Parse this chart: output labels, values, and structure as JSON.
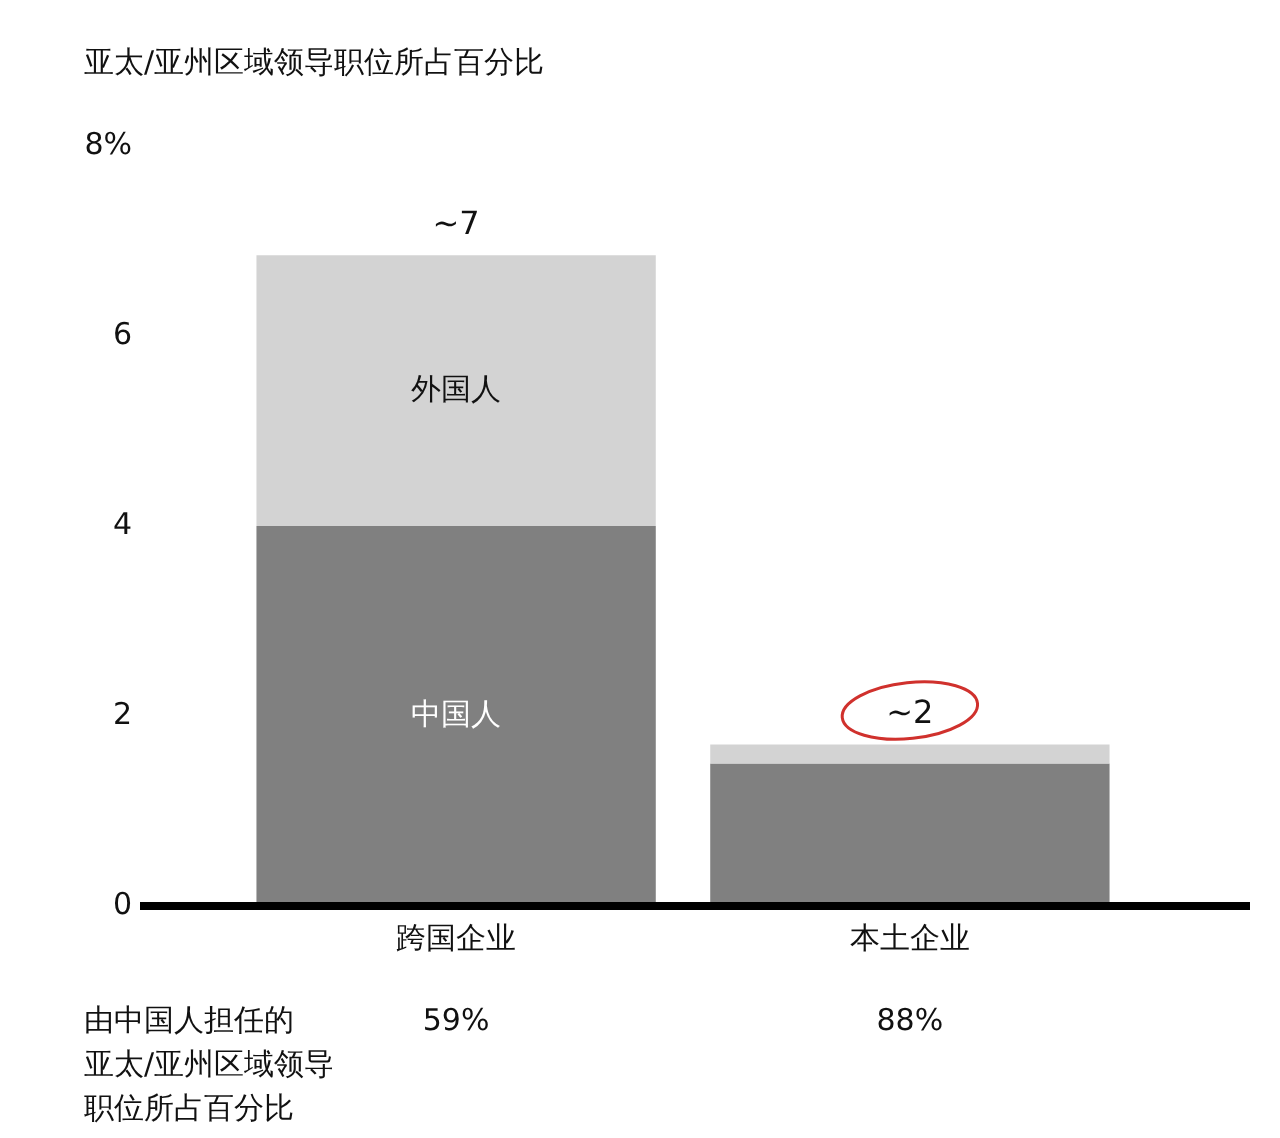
{
  "chart_data": {
    "type": "bar",
    "stacked": true,
    "ylabel": "亚太/亚州区域领导职位所占百分比",
    "categories": [
      "跨国企业",
      "本土企业"
    ],
    "series": [
      {
        "name": "中国人",
        "color": "#808080",
        "values": [
          4,
          1.5
        ]
      },
      {
        "name": "外国人",
        "color": "#d3d3d3",
        "values": [
          2.85,
          0.2
        ]
      }
    ],
    "ylim": [
      0,
      8
    ],
    "yticks": [
      0,
      2,
      4,
      6,
      {
        "value": 8,
        "label": "8%"
      }
    ],
    "grid": false,
    "totals": [
      "~7",
      "~2"
    ],
    "annotations": [
      "由中国人担任的亚太/亚州区域领导职位所占百分比",
      "59%",
      "88%"
    ]
  }
}
